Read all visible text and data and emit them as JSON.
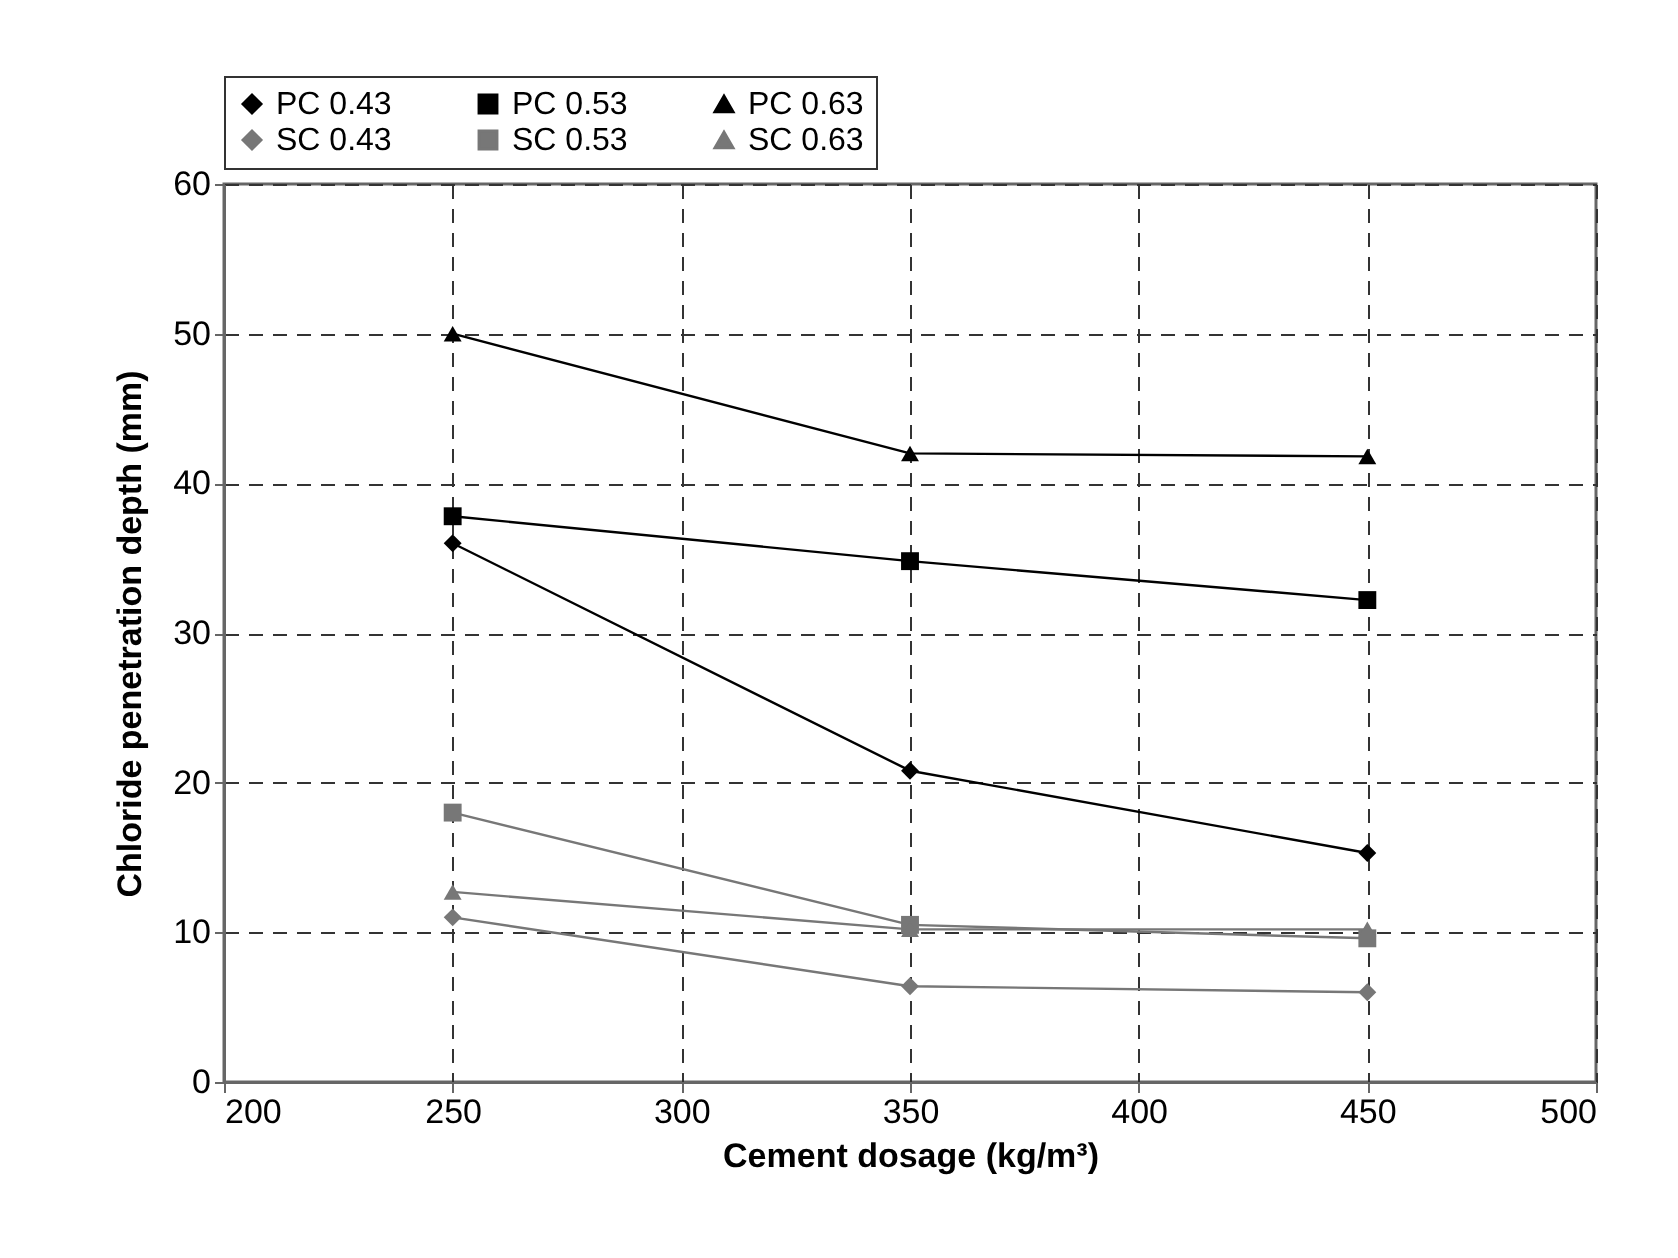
{
  "chart_data": {
    "type": "line",
    "xlabel": "Cement dosage (kg/m³)",
    "ylabel": "Chloride penetration depth (mm)",
    "x": [
      250,
      350,
      450
    ],
    "series": [
      {
        "name": "PC 0.43",
        "color": "#000000",
        "marker": "diamond",
        "values": [
          36,
          20.8,
          15.3
        ]
      },
      {
        "name": "PC 0.53",
        "color": "#000000",
        "marker": "square",
        "values": [
          37.8,
          34.8,
          32.2
        ]
      },
      {
        "name": "PC 0.63",
        "color": "#000000",
        "marker": "triangle",
        "values": [
          50,
          42,
          41.8
        ]
      },
      {
        "name": "SC 0.43",
        "color": "#777777",
        "marker": "diamond",
        "values": [
          11,
          6.4,
          6
        ]
      },
      {
        "name": "SC 0.53",
        "color": "#777777",
        "marker": "square",
        "values": [
          18,
          10.5,
          9.6
        ]
      },
      {
        "name": "SC 0.63",
        "color": "#777777",
        "marker": "triangle",
        "values": [
          12.7,
          10.2,
          10.2
        ]
      }
    ],
    "xlim": [
      200,
      500
    ],
    "xticks": [
      200,
      250,
      300,
      350,
      400,
      450,
      500
    ],
    "ylim": [
      0,
      60
    ],
    "yticks": [
      0,
      10,
      20,
      30,
      40,
      50,
      60
    ],
    "grid": true,
    "legend": "top",
    "line_style": "solid"
  }
}
